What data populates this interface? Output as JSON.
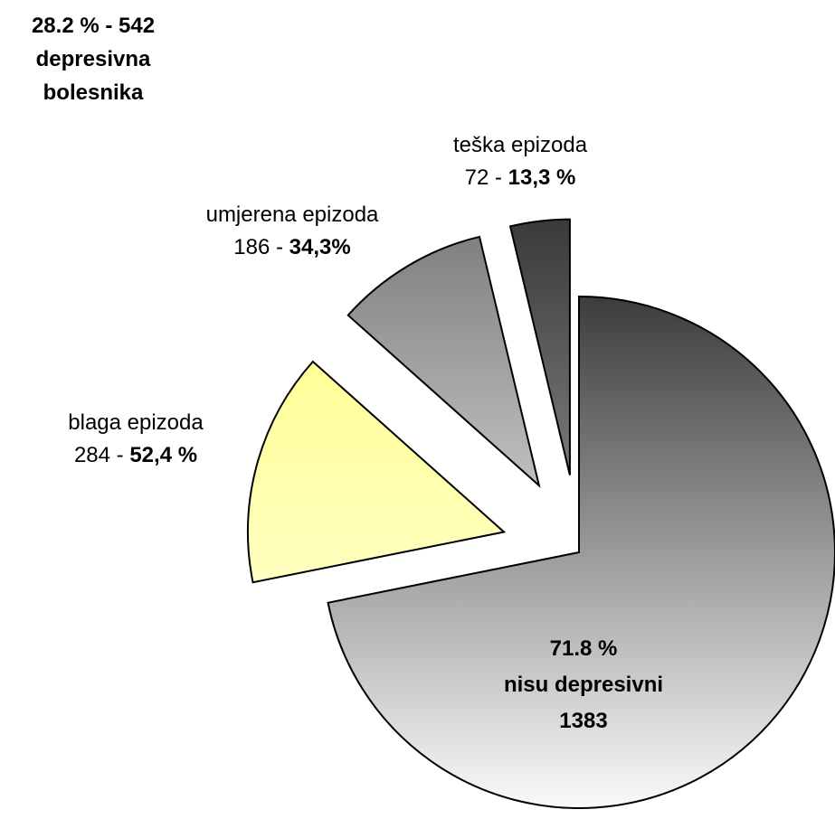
{
  "chart_data": {
    "type": "pie",
    "annotation": [
      "28.2 % - 542",
      "depresivna",
      "bolesnika"
    ],
    "categories": [
      "nisu depresivni",
      "blaga epizoda",
      "umjerena epizoda",
      "teška epizoda"
    ],
    "values": [
      1383,
      284,
      186,
      72
    ],
    "value_labels": [
      "1383",
      "284",
      "186",
      "72"
    ],
    "percent_labels": [
      "71.8 %",
      "52,4 %",
      "34,3%",
      "13,3 %"
    ],
    "separator": " - ",
    "exploded": [
      false,
      true,
      true,
      true
    ],
    "colors": [
      "#3c3c3c",
      "#ffff99",
      "#808080",
      "#3a3a3a"
    ],
    "gradient_colors": [
      "#fafafa",
      "#ffffc0",
      "#c0c0c0",
      "#7a7a7a"
    ]
  }
}
